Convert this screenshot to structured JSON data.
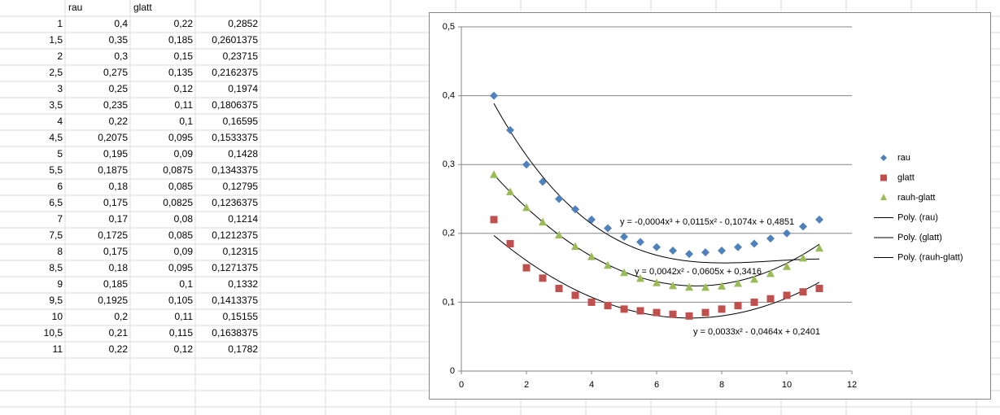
{
  "table": {
    "header": [
      "rau",
      "glatt"
    ],
    "rows": [
      [
        "1",
        "0,4",
        "0,22",
        "0,2852"
      ],
      [
        "1,5",
        "0,35",
        "0,185",
        "0,2601375"
      ],
      [
        "2",
        "0,3",
        "0,15",
        "0,23715"
      ],
      [
        "2,5",
        "0,275",
        "0,135",
        "0,2162375"
      ],
      [
        "3",
        "0,25",
        "0,12",
        "0,1974"
      ],
      [
        "3,5",
        "0,235",
        "0,11",
        "0,1806375"
      ],
      [
        "4",
        "0,22",
        "0,1",
        "0,16595"
      ],
      [
        "4,5",
        "0,2075",
        "0,095",
        "0,1533375"
      ],
      [
        "5",
        "0,195",
        "0,09",
        "0,1428"
      ],
      [
        "5,5",
        "0,1875",
        "0,0875",
        "0,1343375"
      ],
      [
        "6",
        "0,18",
        "0,085",
        "0,12795"
      ],
      [
        "6,5",
        "0,175",
        "0,0825",
        "0,1236375"
      ],
      [
        "7",
        "0,17",
        "0,08",
        "0,1214"
      ],
      [
        "7,5",
        "0,1725",
        "0,085",
        "0,1212375"
      ],
      [
        "8",
        "0,175",
        "0,09",
        "0,12315"
      ],
      [
        "8,5",
        "0,18",
        "0,095",
        "0,1271375"
      ],
      [
        "9",
        "0,185",
        "0,1",
        "0,1332"
      ],
      [
        "9,5",
        "0,1925",
        "0,105",
        "0,1413375"
      ],
      [
        "10",
        "0,2",
        "0,11",
        "0,15155"
      ],
      [
        "10,5",
        "0,21",
        "0,115",
        "0,1638375"
      ],
      [
        "11",
        "0,22",
        "0,12",
        "0,1782"
      ]
    ]
  },
  "chart_data": {
    "type": "scatter",
    "x": [
      1,
      1.5,
      2,
      2.5,
      3,
      3.5,
      4,
      4.5,
      5,
      5.5,
      6,
      6.5,
      7,
      7.5,
      8,
      8.5,
      9,
      9.5,
      10,
      10.5,
      11
    ],
    "series": [
      {
        "name": "rau",
        "color": "#4f81bd",
        "marker": "diamond",
        "values": [
          0.4,
          0.35,
          0.3,
          0.275,
          0.25,
          0.235,
          0.22,
          0.2075,
          0.195,
          0.1875,
          0.18,
          0.175,
          0.17,
          0.1725,
          0.175,
          0.18,
          0.185,
          0.1925,
          0.2,
          0.21,
          0.22
        ]
      },
      {
        "name": "glatt",
        "color": "#c0504d",
        "marker": "square",
        "values": [
          0.22,
          0.185,
          0.15,
          0.135,
          0.12,
          0.11,
          0.1,
          0.095,
          0.09,
          0.0875,
          0.085,
          0.0825,
          0.08,
          0.085,
          0.09,
          0.095,
          0.1,
          0.105,
          0.11,
          0.115,
          0.12
        ]
      },
      {
        "name": "rauh-glatt",
        "color": "#9bbb59",
        "marker": "triangle",
        "values": [
          0.2852,
          0.2601375,
          0.23715,
          0.2162375,
          0.1974,
          0.1806375,
          0.16595,
          0.1533375,
          0.1428,
          0.1343375,
          0.12795,
          0.1236375,
          0.1214,
          0.1212375,
          0.12315,
          0.1271375,
          0.1332,
          0.1413375,
          0.15155,
          0.1638375,
          0.1782
        ]
      }
    ],
    "trendlines": [
      {
        "name": "Poly. (rau)",
        "color": "#000000",
        "coefficients": [
          -0.0004,
          0.0115,
          -0.1074,
          0.4851
        ],
        "equation": "y = -0,0004x³ + 0,0115x² - 0,1074x + 0,4851"
      },
      {
        "name": "Poly. (glatt)",
        "color": "#000000",
        "coefficients": [
          0.0033,
          -0.0464,
          0.2401
        ],
        "equation": "y = 0,0033x² - 0,0464x + 0,2401"
      },
      {
        "name": "Poly. (rauh-glatt)",
        "color": "#000000",
        "coefficients": [
          0.0042,
          -0.0605,
          0.3416
        ],
        "equation": "y = 0,0042x² - 0,0605x + 0,3416"
      }
    ],
    "xlim": [
      0,
      12
    ],
    "xticks": [
      0,
      2,
      4,
      6,
      8,
      10,
      12
    ],
    "ylim": [
      0,
      0.5
    ],
    "yticks": [
      0,
      {
        "value": 0.1,
        "label": "0,1"
      },
      {
        "value": 0.2,
        "label": "0,2"
      },
      {
        "value": 0.3,
        "label": "0,3"
      },
      {
        "value": 0.4,
        "label": "0,4"
      },
      {
        "value": 0.5,
        "label": "0,5"
      }
    ],
    "grid": true,
    "legend": "right"
  }
}
